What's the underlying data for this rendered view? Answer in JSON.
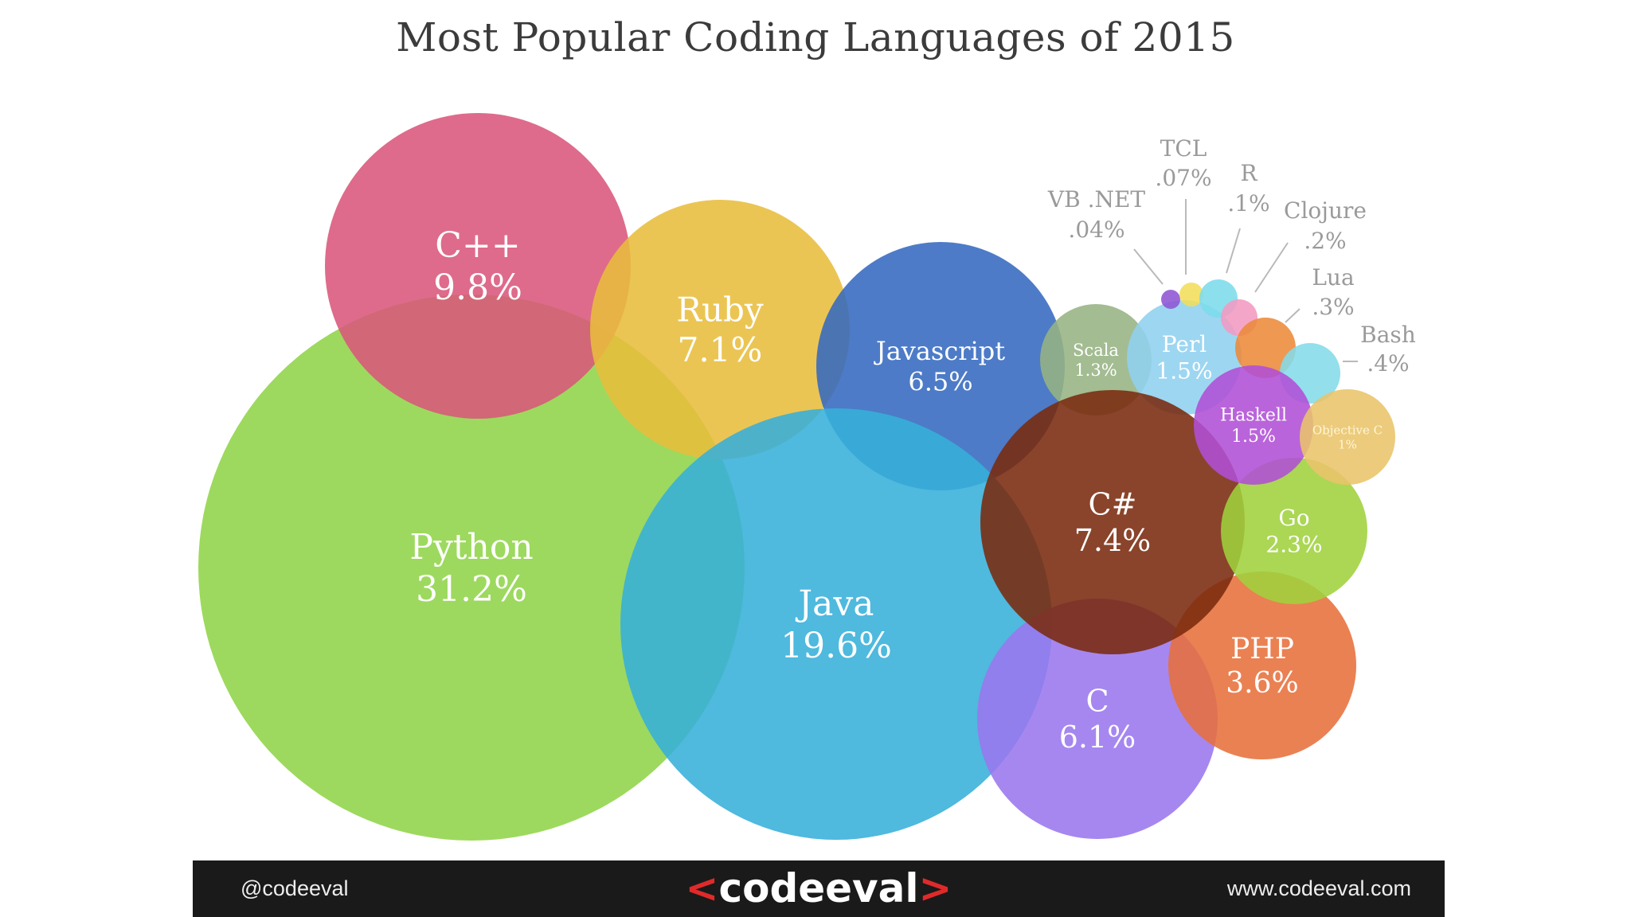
{
  "chart_data": {
    "type": "bubble",
    "title": "Most Popular Coding Languages of 2015",
    "unit": "%",
    "items": [
      {
        "name": "Python",
        "value": 31.2,
        "label": "31.2%",
        "color": "#8fd448"
      },
      {
        "name": "Java",
        "value": 19.6,
        "label": "19.6%",
        "color": "#37afd9"
      },
      {
        "name": "C++",
        "value": 9.8,
        "label": "9.8%",
        "color": "#d9577b"
      },
      {
        "name": "C#",
        "value": 7.4,
        "label": "7.4%",
        "color": "#7a2a0e"
      },
      {
        "name": "Ruby",
        "value": 7.1,
        "label": "7.1%",
        "color": "#e8bd3c"
      },
      {
        "name": "Javascript",
        "value": 6.5,
        "label": "6.5%",
        "color": "#3469bf"
      },
      {
        "name": "C",
        "value": 6.1,
        "label": "6.1%",
        "color": "#9a76ee"
      },
      {
        "name": "PHP",
        "value": 3.6,
        "label": "3.6%",
        "color": "#e7703b"
      },
      {
        "name": "Go",
        "value": 2.3,
        "label": "2.3%",
        "color": "#9fd13c"
      },
      {
        "name": "Perl",
        "value": 1.5,
        "label": "1.5%",
        "color": "#8fd0ef"
      },
      {
        "name": "Haskell",
        "value": 1.5,
        "label": "1.5%",
        "color": "#b14fd6"
      },
      {
        "name": "Scala",
        "value": 1.3,
        "label": "1.3%",
        "color": "#96b383"
      },
      {
        "name": "Objective C",
        "value": 1.0,
        "label": "1%",
        "color": "#e9c46a"
      },
      {
        "name": "Bash",
        "value": 0.4,
        "label": ".4%",
        "color": "#84dbe9"
      },
      {
        "name": "Lua",
        "value": 0.3,
        "label": ".3%",
        "color": "#ec8a3a"
      },
      {
        "name": "Clojure",
        "value": 0.2,
        "label": ".2%",
        "color": "#f29ac2"
      },
      {
        "name": "R",
        "value": 0.1,
        "label": ".1%",
        "color": "#7cdcea"
      },
      {
        "name": "TCL",
        "value": 0.07,
        "label": ".07%",
        "color": "#f1de5a"
      },
      {
        "name": "VB .NET",
        "value": 0.04,
        "label": ".04%",
        "color": "#8e55d3"
      }
    ]
  },
  "footer": {
    "handle": "@codeeval",
    "logo": "codeeval",
    "site": "www.codeeval.com"
  }
}
